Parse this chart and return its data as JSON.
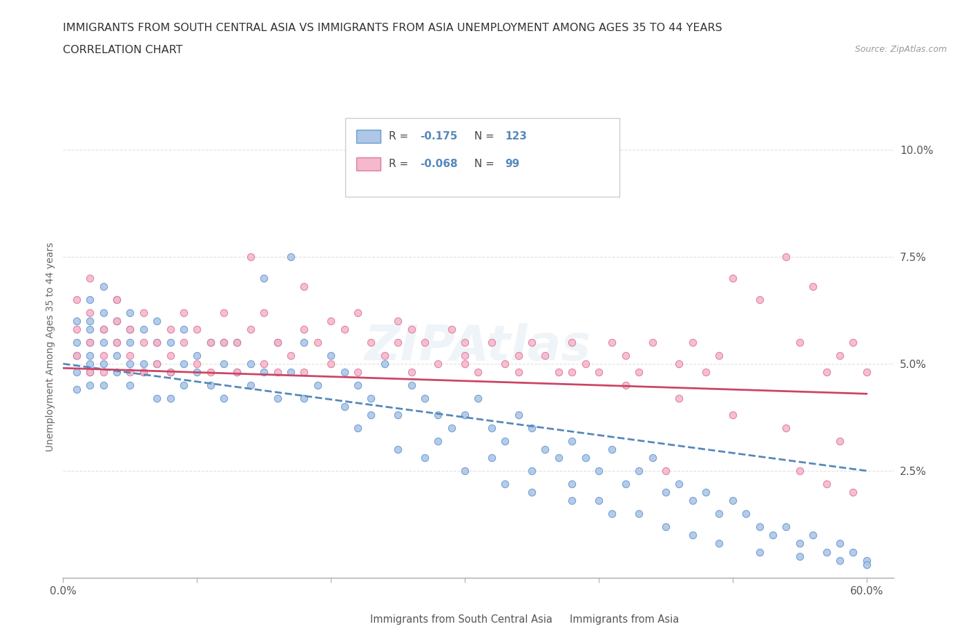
{
  "title_line1": "IMMIGRANTS FROM SOUTH CENTRAL ASIA VS IMMIGRANTS FROM ASIA UNEMPLOYMENT AMONG AGES 35 TO 44 YEARS",
  "title_line2": "CORRELATION CHART",
  "source_text": "Source: ZipAtlas.com",
  "ylabel": "Unemployment Among Ages 35 to 44 years",
  "xlim": [
    0.0,
    0.62
  ],
  "ylim": [
    0.0,
    0.108
  ],
  "xticks": [
    0.0,
    0.1,
    0.2,
    0.3,
    0.4,
    0.5,
    0.6
  ],
  "xticklabels": [
    "0.0%",
    "",
    "",
    "",
    "",
    "",
    "60.0%"
  ],
  "yticks": [
    0.025,
    0.05,
    0.075,
    0.1
  ],
  "yticklabels": [
    "2.5%",
    "5.0%",
    "7.5%",
    "10.0%"
  ],
  "blue_color": "#AEC6E8",
  "blue_edge_color": "#6699CC",
  "pink_color": "#F5B8CC",
  "pink_edge_color": "#DD7799",
  "blue_line_color": "#5588BB",
  "pink_line_color": "#CC4466",
  "legend_R_blue": "-0.175",
  "legend_N_blue": "123",
  "legend_R_pink": "-0.068",
  "legend_N_pink": "99",
  "legend_label_blue": "Immigrants from South Central Asia",
  "legend_label_pink": "Immigrants from Asia",
  "watermark": "ZIPAtlas",
  "blue_trend_y_start": 0.05,
  "blue_trend_y_end": 0.025,
  "pink_trend_y_start": 0.049,
  "pink_trend_y_end": 0.043,
  "grid_color": "#DDDDDD",
  "background_color": "#FFFFFF",
  "blue_scatter_x": [
    0.01,
    0.01,
    0.01,
    0.01,
    0.01,
    0.02,
    0.02,
    0.02,
    0.02,
    0.02,
    0.02,
    0.02,
    0.02,
    0.03,
    0.03,
    0.03,
    0.03,
    0.03,
    0.03,
    0.04,
    0.04,
    0.04,
    0.04,
    0.04,
    0.05,
    0.05,
    0.05,
    0.05,
    0.05,
    0.06,
    0.06,
    0.06,
    0.07,
    0.07,
    0.07,
    0.07,
    0.08,
    0.08,
    0.08,
    0.09,
    0.09,
    0.09,
    0.1,
    0.1,
    0.11,
    0.11,
    0.12,
    0.12,
    0.12,
    0.13,
    0.13,
    0.14,
    0.14,
    0.15,
    0.15,
    0.16,
    0.16,
    0.17,
    0.17,
    0.18,
    0.18,
    0.19,
    0.2,
    0.21,
    0.22,
    0.23,
    0.24,
    0.25,
    0.26,
    0.27,
    0.28,
    0.29,
    0.3,
    0.31,
    0.32,
    0.33,
    0.34,
    0.35,
    0.36,
    0.37,
    0.38,
    0.39,
    0.4,
    0.41,
    0.42,
    0.43,
    0.44,
    0.45,
    0.46,
    0.47,
    0.48,
    0.49,
    0.5,
    0.51,
    0.52,
    0.53,
    0.54,
    0.55,
    0.56,
    0.57,
    0.58,
    0.59,
    0.6,
    0.21,
    0.23,
    0.28,
    0.32,
    0.35,
    0.38,
    0.4,
    0.43,
    0.45,
    0.47,
    0.49,
    0.52,
    0.55,
    0.58,
    0.6,
    0.22,
    0.25,
    0.27,
    0.3,
    0.33,
    0.35,
    0.38,
    0.41
  ],
  "blue_scatter_y": [
    0.052,
    0.048,
    0.055,
    0.044,
    0.06,
    0.05,
    0.055,
    0.048,
    0.06,
    0.045,
    0.052,
    0.058,
    0.065,
    0.05,
    0.058,
    0.045,
    0.062,
    0.055,
    0.068,
    0.048,
    0.055,
    0.052,
    0.06,
    0.065,
    0.05,
    0.058,
    0.045,
    0.055,
    0.062,
    0.05,
    0.048,
    0.058,
    0.05,
    0.055,
    0.042,
    0.06,
    0.048,
    0.055,
    0.042,
    0.05,
    0.058,
    0.045,
    0.052,
    0.048,
    0.055,
    0.045,
    0.055,
    0.05,
    0.042,
    0.055,
    0.048,
    0.05,
    0.045,
    0.07,
    0.048,
    0.055,
    0.042,
    0.075,
    0.048,
    0.055,
    0.042,
    0.045,
    0.052,
    0.048,
    0.045,
    0.042,
    0.05,
    0.038,
    0.045,
    0.042,
    0.038,
    0.035,
    0.038,
    0.042,
    0.035,
    0.032,
    0.038,
    0.035,
    0.03,
    0.028,
    0.032,
    0.028,
    0.025,
    0.03,
    0.022,
    0.025,
    0.028,
    0.02,
    0.022,
    0.018,
    0.02,
    0.015,
    0.018,
    0.015,
    0.012,
    0.01,
    0.012,
    0.008,
    0.01,
    0.006,
    0.008,
    0.006,
    0.004,
    0.04,
    0.038,
    0.032,
    0.028,
    0.025,
    0.022,
    0.018,
    0.015,
    0.012,
    0.01,
    0.008,
    0.006,
    0.005,
    0.004,
    0.003,
    0.035,
    0.03,
    0.028,
    0.025,
    0.022,
    0.02,
    0.018,
    0.015
  ],
  "pink_scatter_x": [
    0.01,
    0.01,
    0.01,
    0.02,
    0.02,
    0.02,
    0.02,
    0.03,
    0.03,
    0.03,
    0.04,
    0.04,
    0.04,
    0.05,
    0.05,
    0.05,
    0.06,
    0.06,
    0.06,
    0.07,
    0.07,
    0.08,
    0.08,
    0.08,
    0.09,
    0.09,
    0.1,
    0.1,
    0.11,
    0.11,
    0.12,
    0.12,
    0.13,
    0.13,
    0.14,
    0.15,
    0.15,
    0.16,
    0.16,
    0.17,
    0.18,
    0.18,
    0.19,
    0.2,
    0.21,
    0.22,
    0.23,
    0.24,
    0.25,
    0.26,
    0.27,
    0.28,
    0.29,
    0.3,
    0.31,
    0.32,
    0.33,
    0.34,
    0.35,
    0.36,
    0.37,
    0.38,
    0.39,
    0.4,
    0.41,
    0.42,
    0.43,
    0.44,
    0.45,
    0.46,
    0.47,
    0.48,
    0.49,
    0.5,
    0.52,
    0.54,
    0.55,
    0.56,
    0.57,
    0.58,
    0.59,
    0.6,
    0.55,
    0.57,
    0.59,
    0.14,
    0.18,
    0.22,
    0.26,
    0.3,
    0.34,
    0.38,
    0.42,
    0.46,
    0.5,
    0.54,
    0.58,
    0.2,
    0.25,
    0.3
  ],
  "pink_scatter_y": [
    0.058,
    0.052,
    0.065,
    0.048,
    0.055,
    0.062,
    0.07,
    0.052,
    0.058,
    0.048,
    0.06,
    0.055,
    0.065,
    0.052,
    0.058,
    0.048,
    0.055,
    0.062,
    0.048,
    0.055,
    0.05,
    0.058,
    0.052,
    0.048,
    0.055,
    0.062,
    0.05,
    0.058,
    0.055,
    0.048,
    0.055,
    0.062,
    0.048,
    0.055,
    0.058,
    0.05,
    0.062,
    0.048,
    0.055,
    0.052,
    0.048,
    0.058,
    0.055,
    0.05,
    0.058,
    0.048,
    0.055,
    0.052,
    0.06,
    0.048,
    0.055,
    0.05,
    0.058,
    0.052,
    0.048,
    0.055,
    0.05,
    0.048,
    0.055,
    0.052,
    0.048,
    0.055,
    0.05,
    0.048,
    0.055,
    0.052,
    0.048,
    0.055,
    0.025,
    0.05,
    0.055,
    0.048,
    0.052,
    0.07,
    0.065,
    0.075,
    0.055,
    0.068,
    0.048,
    0.052,
    0.055,
    0.048,
    0.025,
    0.022,
    0.02,
    0.075,
    0.068,
    0.062,
    0.058,
    0.055,
    0.052,
    0.048,
    0.045,
    0.042,
    0.038,
    0.035,
    0.032,
    0.06,
    0.055,
    0.05
  ]
}
